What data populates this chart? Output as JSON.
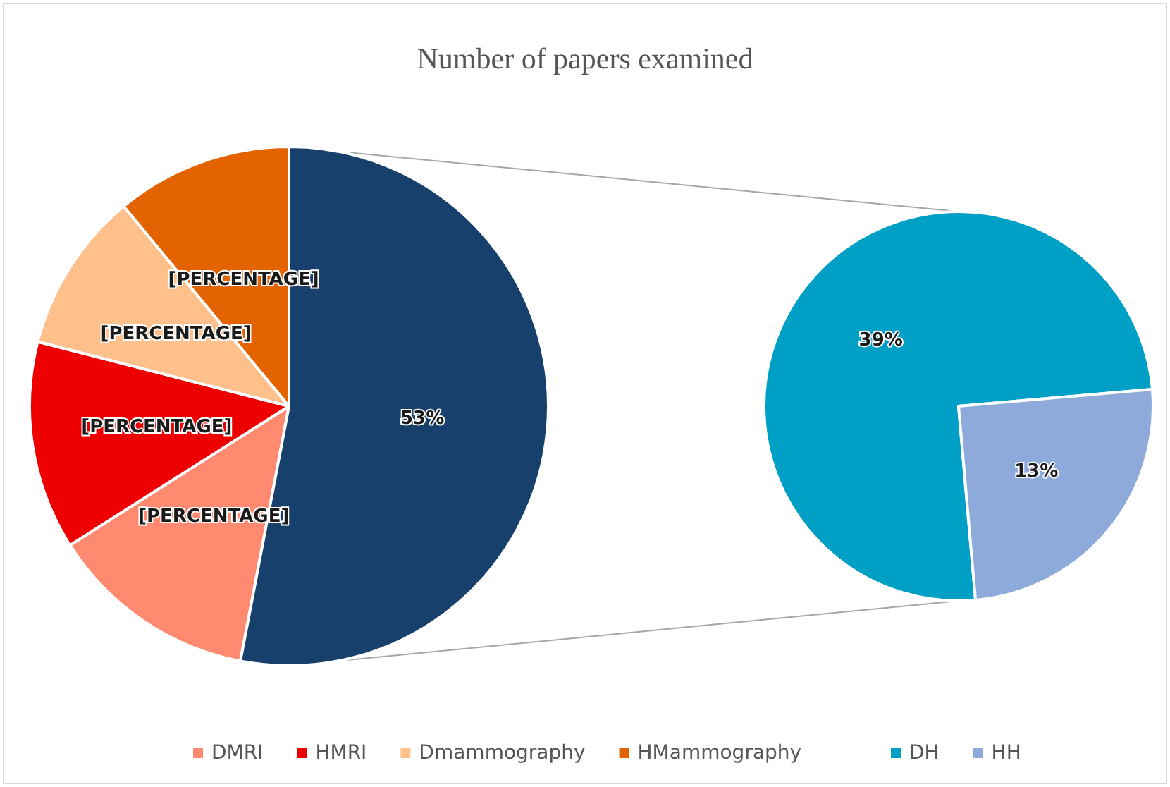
{
  "chart_data": [
    {
      "type": "pie",
      "title": "Number of papers examined",
      "categories": [
        "DMRI",
        "HMRI",
        "Dmammography",
        "HMammography",
        null
      ],
      "values": [
        13,
        13,
        10,
        11,
        53
      ],
      "colors": [
        "#ff8a70",
        "#ee0000",
        "#ffc08c",
        "#e26300",
        "#17406d"
      ],
      "value_labels": [
        "[PERCENTAGE]",
        "[PERCENTAGE]",
        "[PERCENTAGE]",
        "[PERCENTAGE]",
        "53%"
      ],
      "legend": "bottom"
    },
    {
      "type": "pie",
      "categories": [
        "DH",
        "HH"
      ],
      "values": [
        39,
        13
      ],
      "colors": [
        "#009fc6",
        "#8eaadb"
      ],
      "value_labels": [
        "39%",
        "13%"
      ],
      "legend": "bottom"
    }
  ]
}
